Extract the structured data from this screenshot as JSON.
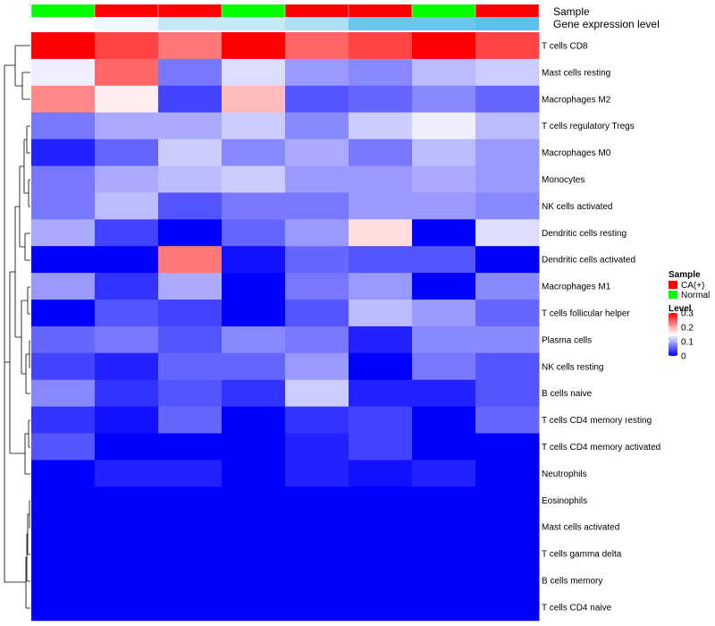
{
  "chart_data": {
    "type": "heatmap",
    "title": "",
    "annotations": {
      "sample_label": "Sample",
      "expression_label": "Gene expression level"
    },
    "columns": [
      {
        "sample": "Normal",
        "expression": 0.3
      },
      {
        "sample": "CA(+)",
        "expression": 0.28
      },
      {
        "sample": "CA(+)",
        "expression": 0.23
      },
      {
        "sample": "Normal",
        "expression": 0.23
      },
      {
        "sample": "CA(+)",
        "expression": 0.2
      },
      {
        "sample": "CA(+)",
        "expression": 0.12
      },
      {
        "sample": "Normal",
        "expression": 0.12
      },
      {
        "sample": "CA(+)",
        "expression": 0.1
      }
    ],
    "rows": [
      "T cells CD8",
      "Mast cells resting",
      "Macrophages M2",
      "T cells regulatory  Tregs",
      "Macrophages M0",
      "Monocytes",
      "NK cells activated",
      "Dendritic cells resting",
      "Dendritic cells activated",
      "Macrophages M1",
      "T cells follicular helper",
      "Plasma cells",
      "NK cells resting",
      "B cells naive",
      "T cells CD4 memory resting",
      "T cells CD4 memory activated",
      "Neutrophils",
      "Eosinophils",
      "Mast cells activated",
      "T cells gamma delta",
      "B cells memory",
      "T cells CD4 naive"
    ],
    "values": [
      [
        0.3,
        0.26,
        0.23,
        0.3,
        0.24,
        0.26,
        0.3,
        0.26
      ],
      [
        0.14,
        0.24,
        0.07,
        0.13,
        0.09,
        0.08,
        0.11,
        0.12
      ],
      [
        0.22,
        0.16,
        0.04,
        0.19,
        0.05,
        0.06,
        0.08,
        0.06
      ],
      [
        0.07,
        0.1,
        0.1,
        0.12,
        0.08,
        0.12,
        0.14,
        0.11
      ],
      [
        0.02,
        0.06,
        0.12,
        0.08,
        0.1,
        0.07,
        0.11,
        0.09
      ],
      [
        0.07,
        0.1,
        0.11,
        0.12,
        0.09,
        0.09,
        0.1,
        0.09
      ],
      [
        0.07,
        0.11,
        0.05,
        0.07,
        0.07,
        0.09,
        0.09,
        0.08
      ],
      [
        0.1,
        0.04,
        0.0,
        0.06,
        0.09,
        0.17,
        0.0,
        0.13
      ],
      [
        0.0,
        0.0,
        0.23,
        0.01,
        0.06,
        0.05,
        0.05,
        0.0
      ],
      [
        0.09,
        0.03,
        0.1,
        0.0,
        0.07,
        0.09,
        0.0,
        0.08
      ],
      [
        0.0,
        0.05,
        0.04,
        0.0,
        0.05,
        0.11,
        0.09,
        0.06
      ],
      [
        0.06,
        0.07,
        0.05,
        0.08,
        0.07,
        0.02,
        0.08,
        0.08
      ],
      [
        0.04,
        0.02,
        0.06,
        0.06,
        0.09,
        0.0,
        0.07,
        0.05
      ],
      [
        0.08,
        0.03,
        0.05,
        0.03,
        0.12,
        0.02,
        0.02,
        0.05
      ],
      [
        0.03,
        0.01,
        0.06,
        0.0,
        0.03,
        0.04,
        0.0,
        0.06
      ],
      [
        0.05,
        0.0,
        0.0,
        0.0,
        0.02,
        0.04,
        0.0,
        0.0
      ],
      [
        0.0,
        0.02,
        0.02,
        0.0,
        0.02,
        0.01,
        0.02,
        0.0
      ],
      [
        0.0,
        0.0,
        0.0,
        0.0,
        0.0,
        0.0,
        0.0,
        0.0
      ],
      [
        0.0,
        0.0,
        0.0,
        0.0,
        0.0,
        0.0,
        0.0,
        0.0
      ],
      [
        0.0,
        0.0,
        0.0,
        0.0,
        0.0,
        0.0,
        0.0,
        0.0
      ],
      [
        0.0,
        0.0,
        0.0,
        0.0,
        0.0,
        0.0,
        0.0,
        0.0
      ],
      [
        0.0,
        0.0,
        0.0,
        0.0,
        0.0,
        0.0,
        0.0,
        0.0
      ]
    ],
    "color_scale": {
      "min": 0,
      "max": 0.3,
      "low_color": "#0000ff",
      "mid_color": "#ffffff",
      "high_color": "#ff0000"
    },
    "legend": {
      "sample_title": "Sample",
      "sample_items": [
        {
          "label": "CA(+)",
          "color": "#ff0000"
        },
        {
          "label": "Normal",
          "color": "#00ff00"
        }
      ],
      "level_title": "Level",
      "level_ticks": [
        {
          "label": "0.3",
          "value": 0.3
        },
        {
          "label": "0.2",
          "value": 0.2
        },
        {
          "label": "0.1",
          "value": 0.1
        },
        {
          "label": "0",
          "value": 0.0
        }
      ]
    },
    "expression_colors": {
      "low": "#5bc0eb",
      "high": "#ffffff"
    }
  }
}
